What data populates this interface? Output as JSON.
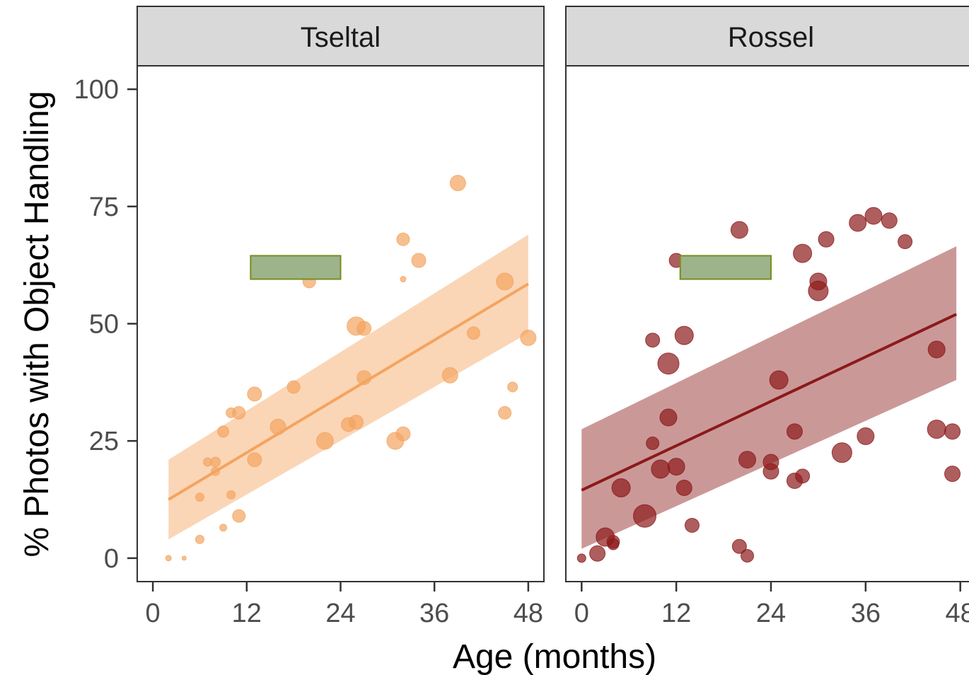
{
  "chart_data": {
    "type": "scatter",
    "xlabel": "Age (months)",
    "ylabel": "% Photos with Object Handling",
    "xlim": [
      -2,
      50
    ],
    "ylim": [
      -5,
      105
    ],
    "xticks": [
      0,
      12,
      24,
      36,
      48
    ],
    "yticks": [
      0,
      25,
      50,
      75,
      100
    ],
    "xtick_labels": [
      "0",
      "12",
      "24",
      "36",
      "48"
    ],
    "ytick_labels": [
      "0",
      "25",
      "50",
      "75",
      "100"
    ],
    "grid": false,
    "legend": "none",
    "panels": [
      {
        "name": "Tseltal",
        "color": "#f4a460",
        "fit": {
          "x": [
            2,
            48
          ],
          "y": [
            12.5,
            58.5
          ]
        },
        "ribbon": {
          "x": [
            2,
            48
          ],
          "ymin": [
            4,
            48
          ],
          "ymax": [
            21,
            69
          ]
        },
        "rect": {
          "x": [
            12.5,
            24
          ],
          "y": [
            59.5,
            64.5
          ],
          "fill": "#9db38a",
          "stroke": "#7a8c1e"
        },
        "points": [
          {
            "x": 2,
            "y": 0,
            "s": 4
          },
          {
            "x": 4,
            "y": 0,
            "s": 3
          },
          {
            "x": 6,
            "y": 4,
            "s": 6
          },
          {
            "x": 6,
            "y": 13,
            "s": 6
          },
          {
            "x": 7,
            "y": 20.5,
            "s": 6
          },
          {
            "x": 8,
            "y": 20.5,
            "s": 7
          },
          {
            "x": 8,
            "y": 18.5,
            "s": 6
          },
          {
            "x": 9,
            "y": 6.5,
            "s": 5
          },
          {
            "x": 9,
            "y": 27,
            "s": 8
          },
          {
            "x": 10,
            "y": 31,
            "s": 7
          },
          {
            "x": 10,
            "y": 13.5,
            "s": 6
          },
          {
            "x": 11,
            "y": 31,
            "s": 9
          },
          {
            "x": 11,
            "y": 9,
            "s": 9
          },
          {
            "x": 13,
            "y": 21,
            "s": 10
          },
          {
            "x": 13,
            "y": 35,
            "s": 10
          },
          {
            "x": 16,
            "y": 28,
            "s": 11
          },
          {
            "x": 18,
            "y": 36.5,
            "s": 9
          },
          {
            "x": 20,
            "y": 59,
            "s": 9
          },
          {
            "x": 22,
            "y": 25,
            "s": 12
          },
          {
            "x": 25,
            "y": 28.5,
            "s": 10
          },
          {
            "x": 26,
            "y": 29,
            "s": 10
          },
          {
            "x": 26,
            "y": 49.5,
            "s": 13
          },
          {
            "x": 27,
            "y": 49,
            "s": 10
          },
          {
            "x": 27,
            "y": 38.5,
            "s": 10
          },
          {
            "x": 31,
            "y": 25,
            "s": 12
          },
          {
            "x": 32,
            "y": 26.5,
            "s": 10
          },
          {
            "x": 32,
            "y": 68,
            "s": 9
          },
          {
            "x": 32,
            "y": 59.5,
            "s": 4
          },
          {
            "x": 34,
            "y": 63.5,
            "s": 10
          },
          {
            "x": 38,
            "y": 39,
            "s": 11
          },
          {
            "x": 39,
            "y": 80,
            "s": 11
          },
          {
            "x": 41,
            "y": 48,
            "s": 9
          },
          {
            "x": 45,
            "y": 59,
            "s": 12
          },
          {
            "x": 45,
            "y": 31,
            "s": 9
          },
          {
            "x": 46,
            "y": 36.5,
            "s": 7
          },
          {
            "x": 48,
            "y": 47,
            "s": 11
          }
        ]
      },
      {
        "name": "Rossel",
        "color": "#8b1a1a",
        "fit": {
          "x": [
            0,
            47.5
          ],
          "y": [
            14.5,
            52
          ]
        },
        "ribbon": {
          "x": [
            0,
            47.5
          ],
          "ymin": [
            2,
            38
          ],
          "ymax": [
            27.5,
            66.5
          ]
        },
        "rect": {
          "x": [
            12.5,
            24
          ],
          "y": [
            59.5,
            64.5
          ],
          "fill": "#9db38a",
          "stroke": "#7a8c1e"
        },
        "points": [
          {
            "x": 0,
            "y": 0,
            "s": 6
          },
          {
            "x": 2,
            "y": 1,
            "s": 11
          },
          {
            "x": 3,
            "y": 4.5,
            "s": 13
          },
          {
            "x": 4,
            "y": 3,
            "s": 8
          },
          {
            "x": 4,
            "y": 3.5,
            "s": 9
          },
          {
            "x": 5,
            "y": 15,
            "s": 13
          },
          {
            "x": 8,
            "y": 9,
            "s": 16
          },
          {
            "x": 9,
            "y": 24.5,
            "s": 9
          },
          {
            "x": 9,
            "y": 46.5,
            "s": 10
          },
          {
            "x": 10,
            "y": 19,
            "s": 13
          },
          {
            "x": 11,
            "y": 41.5,
            "s": 15
          },
          {
            "x": 11,
            "y": 30,
            "s": 12
          },
          {
            "x": 12,
            "y": 19.5,
            "s": 12
          },
          {
            "x": 12,
            "y": 63.5,
            "s": 10
          },
          {
            "x": 13,
            "y": 15,
            "s": 11
          },
          {
            "x": 13,
            "y": 47.5,
            "s": 13
          },
          {
            "x": 14,
            "y": 7,
            "s": 10
          },
          {
            "x": 20,
            "y": 70,
            "s": 12
          },
          {
            "x": 20,
            "y": 2.5,
            "s": 10
          },
          {
            "x": 21,
            "y": 0.5,
            "s": 9
          },
          {
            "x": 21,
            "y": 21,
            "s": 12
          },
          {
            "x": 24,
            "y": 20.5,
            "s": 11
          },
          {
            "x": 24,
            "y": 18.5,
            "s": 11
          },
          {
            "x": 25,
            "y": 38,
            "s": 13
          },
          {
            "x": 27,
            "y": 27,
            "s": 11
          },
          {
            "x": 27,
            "y": 16.5,
            "s": 11
          },
          {
            "x": 28,
            "y": 17.5,
            "s": 10
          },
          {
            "x": 28,
            "y": 65,
            "s": 13
          },
          {
            "x": 30,
            "y": 59,
            "s": 12
          },
          {
            "x": 30,
            "y": 57,
            "s": 14
          },
          {
            "x": 31,
            "y": 68,
            "s": 11
          },
          {
            "x": 33,
            "y": 22.5,
            "s": 14
          },
          {
            "x": 35,
            "y": 71.5,
            "s": 12
          },
          {
            "x": 36,
            "y": 26,
            "s": 12
          },
          {
            "x": 37,
            "y": 73,
            "s": 12
          },
          {
            "x": 39,
            "y": 72,
            "s": 11
          },
          {
            "x": 41,
            "y": 67.5,
            "s": 10
          },
          {
            "x": 45,
            "y": 44.5,
            "s": 12
          },
          {
            "x": 45,
            "y": 27.5,
            "s": 13
          },
          {
            "x": 47,
            "y": 27,
            "s": 11
          },
          {
            "x": 47,
            "y": 18,
            "s": 11
          }
        ]
      }
    ]
  }
}
